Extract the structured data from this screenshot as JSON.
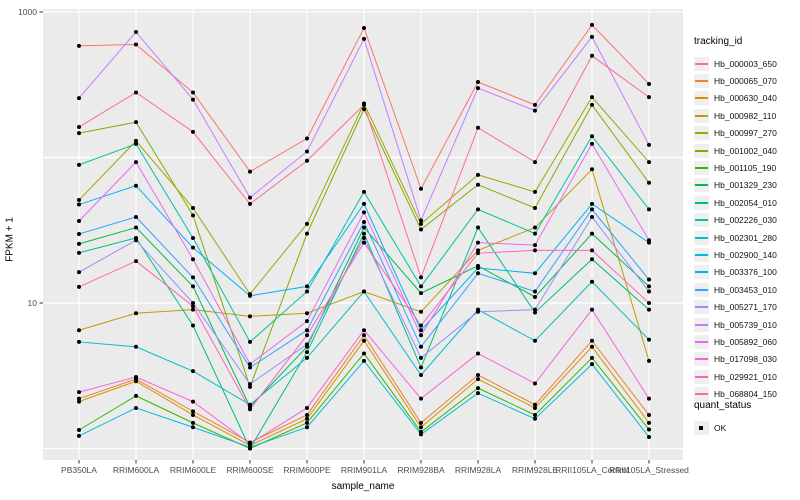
{
  "chart_data": {
    "type": "line",
    "title": "",
    "xlabel": "sample_name",
    "ylabel": "FPKM + 1",
    "yscale": "log10",
    "ylim": [
      0.83,
      1050
    ],
    "y_tick_labels": [
      {
        "value": 1000,
        "label": "1000"
      },
      {
        "value": 10,
        "label": "10"
      }
    ],
    "y_gridlines": [
      1,
      10,
      100,
      1000
    ],
    "grid": "on",
    "legend_position": "right",
    "panel_bg": "#EBEBEB",
    "grid_color": "#FFFFFF",
    "point_color": "#000000",
    "axis_text_color": "#4D4D4D",
    "categories": [
      "PB350LA",
      "RRIM600LA",
      "RRIM600LE",
      "RRIM600SE",
      "RRIM600PE",
      "RRIM901LA",
      "RRIM928BA",
      "RRIM928LA",
      "RRIM928LE",
      "RRII105LA_Control",
      "RRII105LA_Stressed"
    ],
    "legend": {
      "title": "tracking_id"
    },
    "legend2": {
      "title": "quant_status",
      "items": [
        "OK"
      ]
    },
    "series": [
      {
        "name": "Hb_000003_650",
        "color": "#F8766D",
        "values": [
          585,
          598,
          280,
          80,
          135,
          776,
          61,
          330,
          230,
          815,
          320
        ]
      },
      {
        "name": "Hb_000065_070",
        "color": "#EA8331",
        "values": [
          2.2,
          3.0,
          1.8,
          1.1,
          1.7,
          6.0,
          1.5,
          3.2,
          2.0,
          5.5,
          1.7
        ]
      },
      {
        "name": "Hb_000630_040",
        "color": "#D89000",
        "values": [
          2.1,
          2.9,
          1.7,
          1.05,
          1.6,
          5.5,
          1.4,
          3.0,
          1.9,
          5.0,
          1.5
        ]
      },
      {
        "name": "Hb_000982_110",
        "color": "#C09B00",
        "values": [
          6.5,
          8.5,
          9.0,
          8.1,
          8.5,
          12,
          8.7,
          23,
          33,
          83,
          4.0
        ]
      },
      {
        "name": "Hb_000997_270",
        "color": "#A3A500",
        "values": [
          51,
          130,
          45,
          11.5,
          35,
          235,
          35,
          76,
          58,
          260,
          93
        ]
      },
      {
        "name": "Hb_001002_040",
        "color": "#7CAE00",
        "values": [
          147,
          175,
          40,
          2.65,
          30,
          215,
          32,
          65,
          45,
          230,
          67
        ]
      },
      {
        "name": "Hb_001105_190",
        "color": "#39B600",
        "values": [
          1.34,
          2.3,
          1.5,
          1.0,
          1.5,
          4.5,
          1.3,
          2.6,
          1.7,
          4.2,
          1.35
        ]
      },
      {
        "name": "Hb_001329_230",
        "color": "#00BB4E",
        "values": [
          25.5,
          33,
          13,
          1.93,
          5.0,
          33,
          11.7,
          18,
          11,
          30,
          13
        ]
      },
      {
        "name": "Hb_002054_010",
        "color": "#00BF7D",
        "values": [
          22.1,
          28,
          7.0,
          1.0,
          4.6,
          30,
          3.6,
          33,
          8.6,
          20,
          9.0
        ]
      },
      {
        "name": "Hb_002226_030",
        "color": "#00C1A3",
        "values": [
          89,
          124,
          28,
          5.4,
          12,
          58,
          13,
          44,
          30,
          140,
          44
        ]
      },
      {
        "name": "Hb_002301_280",
        "color": "#00BFC4",
        "values": [
          5.4,
          5.0,
          3.4,
          2.0,
          4.2,
          12,
          3.2,
          9.0,
          5.5,
          14,
          5.6
        ]
      },
      {
        "name": "Hb_002900_140",
        "color": "#00BBDB",
        "values": [
          1.22,
          1.9,
          1.4,
          1.02,
          1.4,
          4.0,
          1.25,
          2.4,
          1.6,
          3.8,
          1.2
        ]
      },
      {
        "name": "Hb_003376_100",
        "color": "#00B0F6",
        "values": [
          47.5,
          64,
          24,
          11.2,
          13,
          48,
          6.5,
          17.4,
          16,
          48,
          26
        ]
      },
      {
        "name": "Hb_003453_010",
        "color": "#35A2FF",
        "values": [
          29.8,
          39,
          15,
          3.6,
          6.5,
          36,
          5.0,
          16,
          12,
          44,
          14.5
        ]
      },
      {
        "name": "Hb_005271_170",
        "color": "#9590FF",
        "values": [
          16.3,
          27,
          10,
          2.77,
          5.2,
          28,
          4.2,
          8.7,
          9.0,
          39,
          12
        ]
      },
      {
        "name": "Hb_005739_010",
        "color": "#C77CFF",
        "values": [
          256,
          729,
          250,
          53,
          110,
          653,
          37,
          300,
          210,
          675,
          122
        ]
      },
      {
        "name": "Hb_005892_060",
        "color": "#E76BF3",
        "values": [
          36.6,
          93,
          20,
          3.8,
          7.5,
          42,
          6.0,
          26,
          25,
          124,
          27
        ]
      },
      {
        "name": "Hb_017098_030",
        "color": "#FA62DB",
        "values": [
          2.44,
          3.1,
          2.1,
          1.08,
          1.9,
          6.5,
          2.2,
          4.5,
          2.8,
          9.0,
          2.2
        ]
      },
      {
        "name": "Hb_029921_010",
        "color": "#FF62BC",
        "values": [
          12.9,
          19.4,
          9.5,
          1.86,
          6.0,
          26,
          7.0,
          22,
          23,
          23,
          10
        ]
      },
      {
        "name": "Hb_068804_150",
        "color": "#FF6A98",
        "values": [
          162,
          280,
          150,
          48,
          95,
          230,
          15,
          160,
          93,
          500,
          260
        ]
      }
    ]
  }
}
